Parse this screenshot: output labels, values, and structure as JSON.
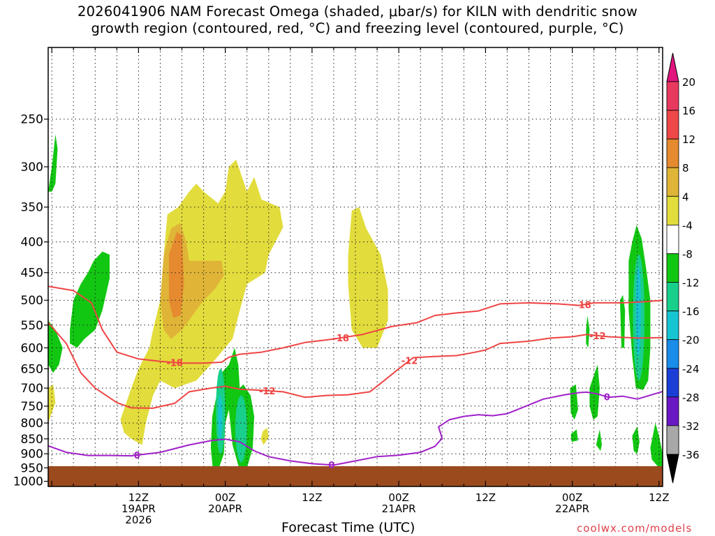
{
  "title_line1": "2026041906 NAM Forecast Omega (shaded, μbar/s) for KILN with dendritic snow",
  "title_line2": "growth region (contoured, red, °C) and freezing level (contoured, purple, °C)",
  "xlabel": "Forecast Time (UTC)",
  "credit": "coolwx.com/models",
  "chart_data": {
    "type": "heatmap",
    "title": "2026041906 NAM Forecast Omega (shaded, μbar/s) for KILN with dendritic snow growth region (contoured, red, °C) and freezing level (contoured, purple, °C)",
    "xlabel": "Forecast Time (UTC)",
    "ylabel": "",
    "x_range_hours": [
      -12.5,
      72.5
    ],
    "y_axis": {
      "scale": "log",
      "reversed": true,
      "range_hPa": [
        1020,
        190
      ],
      "ticks": [
        250,
        300,
        350,
        400,
        450,
        500,
        550,
        600,
        650,
        700,
        750,
        800,
        850,
        900,
        950,
        1000
      ]
    },
    "x_ticks": [
      {
        "h": 0,
        "lines": [
          "12Z",
          "19APR",
          "2026"
        ]
      },
      {
        "h": 12,
        "lines": [
          "00Z",
          "20APR"
        ]
      },
      {
        "h": 24,
        "lines": [
          "12Z"
        ]
      },
      {
        "h": 36,
        "lines": [
          "00Z",
          "21APR"
        ]
      },
      {
        "h": 48,
        "lines": [
          "12Z"
        ]
      },
      {
        "h": 60,
        "lines": [
          "00Z",
          "22APR"
        ]
      },
      {
        "h": 72,
        "lines": [
          "12Z"
        ]
      }
    ],
    "grid": true,
    "colorbar": {
      "labels": [
        20,
        16,
        12,
        8,
        4,
        -4,
        -8,
        -12,
        -16,
        -20,
        -24,
        -28,
        -32,
        -36
      ],
      "colors": [
        "#e8395f",
        "#ee4848",
        "#e58a2f",
        "#e0b437",
        "#e2dc3c",
        "#ffffff",
        "#12c712",
        "#18cf8c",
        "#16c4d2",
        "#1a8cea",
        "#1b3fd6",
        "#6a18c4",
        "#a611bf",
        "#a8a8a8"
      ],
      "extend_top_color": "#e0157e",
      "extend_bottom_color": "#000000"
    },
    "series": [
      {
        "name": "-18",
        "color": "#ef4444",
        "label": "-18",
        "label_hours": [
          5,
          28,
          61.5
        ],
        "points": [
          [
            -12.5,
            474
          ],
          [
            -9,
            482
          ],
          [
            -6.5,
            505
          ],
          [
            -5,
            560
          ],
          [
            -3,
            610
          ],
          [
            0,
            626
          ],
          [
            3,
            632
          ],
          [
            6,
            636
          ],
          [
            9,
            636
          ],
          [
            11.5,
            634
          ],
          [
            12.5,
            622
          ],
          [
            14,
            615
          ],
          [
            17,
            610
          ],
          [
            20,
            600
          ],
          [
            23,
            588
          ],
          [
            27,
            580
          ],
          [
            31,
            570
          ],
          [
            35,
            553
          ],
          [
            38.5,
            545
          ],
          [
            41,
            530
          ],
          [
            44,
            525
          ],
          [
            47,
            521
          ],
          [
            50,
            507
          ],
          [
            54,
            505
          ],
          [
            58,
            507
          ],
          [
            61,
            510
          ],
          [
            63,
            505
          ],
          [
            67,
            505
          ],
          [
            70,
            503
          ],
          [
            72.5,
            500
          ]
        ]
      },
      {
        "name": "-12",
        "color": "#ef4444",
        "label": "-12",
        "label_hours": [
          17.8,
          37.5,
          63.5
        ],
        "points": [
          [
            -12.5,
            545
          ],
          [
            -10,
            590
          ],
          [
            -8,
            660
          ],
          [
            -6,
            700
          ],
          [
            -3,
            740
          ],
          [
            -1,
            755
          ],
          [
            2,
            756
          ],
          [
            5,
            742
          ],
          [
            7,
            710
          ],
          [
            10,
            700
          ],
          [
            12,
            695
          ],
          [
            14,
            703
          ],
          [
            17,
            706
          ],
          [
            20,
            710
          ],
          [
            23,
            725
          ],
          [
            26,
            720
          ],
          [
            29,
            718
          ],
          [
            32,
            710
          ],
          [
            34,
            680
          ],
          [
            36,
            650
          ],
          [
            38,
            623
          ],
          [
            41,
            620
          ],
          [
            44,
            618
          ],
          [
            46,
            612
          ],
          [
            48,
            605
          ],
          [
            50,
            590
          ],
          [
            54,
            585
          ],
          [
            57,
            578
          ],
          [
            60,
            575
          ],
          [
            62,
            570
          ],
          [
            65,
            575
          ],
          [
            69,
            578
          ],
          [
            72.5,
            577
          ]
        ]
      },
      {
        "name": "0",
        "color": "#a020c8",
        "label": "0",
        "label_hours": [
          -0.2,
          26.7,
          64.8
        ],
        "points": [
          [
            -12.5,
            873
          ],
          [
            -10,
            895
          ],
          [
            -7,
            906
          ],
          [
            -4,
            906
          ],
          [
            -1,
            907
          ],
          [
            3,
            895
          ],
          [
            7,
            870
          ],
          [
            10,
            856
          ],
          [
            12,
            851
          ],
          [
            14,
            860
          ],
          [
            16,
            890
          ],
          [
            18,
            910
          ],
          [
            21,
            925
          ],
          [
            24,
            935
          ],
          [
            27,
            940
          ],
          [
            30,
            925
          ],
          [
            33,
            910
          ],
          [
            36,
            905
          ],
          [
            39,
            895
          ],
          [
            41,
            875
          ],
          [
            42,
            848
          ],
          [
            41.5,
            812
          ],
          [
            43,
            790
          ],
          [
            45,
            780
          ],
          [
            47,
            775
          ],
          [
            49,
            778
          ],
          [
            51,
            772
          ],
          [
            53,
            755
          ],
          [
            56,
            730
          ],
          [
            59,
            718
          ],
          [
            61,
            712
          ],
          [
            62,
            711
          ],
          [
            63.5,
            716
          ],
          [
            65,
            725
          ],
          [
            67,
            722
          ],
          [
            69,
            730
          ],
          [
            72.5,
            709
          ]
        ]
      }
    ]
  }
}
